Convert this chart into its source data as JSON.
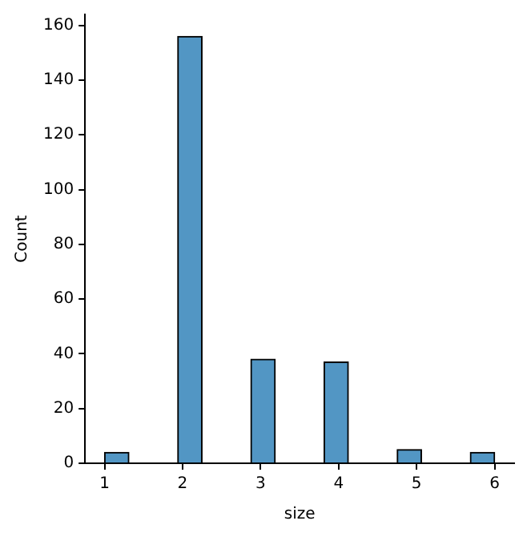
{
  "chart_data": {
    "type": "histogram",
    "xlabel": "size",
    "ylabel": "Count",
    "bins": [
      1,
      1.3125,
      1.625,
      1.9375,
      2.25,
      2.5625,
      2.875,
      3.1875,
      3.5,
      3.8125,
      4.125,
      4.4375,
      4.75,
      5.0625,
      5.375,
      5.6875,
      6
    ],
    "values": [
      4,
      0,
      0,
      156,
      0,
      0,
      38,
      0,
      0,
      37,
      0,
      0,
      5,
      0,
      0,
      4
    ],
    "color": "#5296c4",
    "xlim": [
      0.75,
      6.25
    ],
    "xticks": [
      1,
      2,
      3,
      4,
      5,
      6
    ],
    "ylim": [
      0,
      164
    ],
    "yticks": [
      0,
      20,
      40,
      60,
      80,
      100,
      120,
      140,
      160
    ]
  }
}
